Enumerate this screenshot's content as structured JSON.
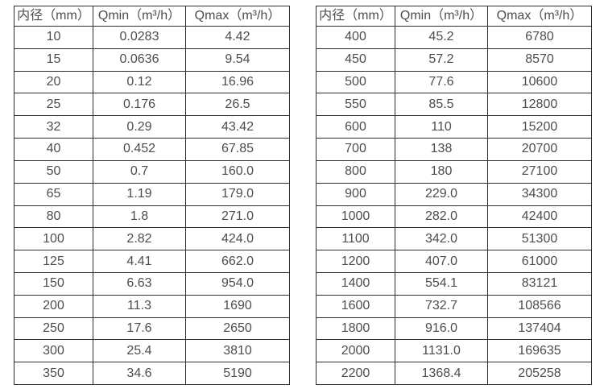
{
  "page": {
    "background": "#ffffff",
    "text_color": "#4d4d4d",
    "border_color": "#2e2e2e",
    "description": "Flow meter diameter and flow range specification tables"
  },
  "tables": [
    {
      "id": "small-diameter-table",
      "headers": [
        "内径（mm）",
        "Qmin（m³/h）",
        "Qmax（m³/h）"
      ],
      "rows": [
        [
          "10",
          "0.0283",
          "4.42"
        ],
        [
          "15",
          "0.0636",
          "9.54"
        ],
        [
          "20",
          "0.12",
          "16.96"
        ],
        [
          "25",
          "0.176",
          "26.5"
        ],
        [
          "32",
          "0.29",
          "43.42"
        ],
        [
          "40",
          "0.452",
          "67.85"
        ],
        [
          "50",
          "0.7",
          "160.0"
        ],
        [
          "65",
          "1.19",
          "179.0"
        ],
        [
          "80",
          "1.8",
          "271.0"
        ],
        [
          "100",
          "2.82",
          "424.0"
        ],
        [
          "125",
          "4.41",
          "662.0"
        ],
        [
          "150",
          "6.63",
          "954.0"
        ],
        [
          "200",
          "11.3",
          "1690"
        ],
        [
          "250",
          "17.6",
          "2650"
        ],
        [
          "300",
          "25.4",
          "3810"
        ],
        [
          "350",
          "34.6",
          "5190"
        ]
      ]
    },
    {
      "id": "large-diameter-table",
      "headers": [
        "内径（mm）",
        "Qmin（m³/h）",
        "Qmax（m³/h）"
      ],
      "rows": [
        [
          "400",
          "45.2",
          "6780"
        ],
        [
          "450",
          "57.2",
          "8570"
        ],
        [
          "500",
          "77.6",
          "10600"
        ],
        [
          "550",
          "85.5",
          "12800"
        ],
        [
          "600",
          "110",
          "15200"
        ],
        [
          "700",
          "138",
          "20700"
        ],
        [
          "800",
          "180",
          "27100"
        ],
        [
          "900",
          "229.0",
          "34300"
        ],
        [
          "1000",
          "282.0",
          "42400"
        ],
        [
          "1100",
          "342.0",
          "51300"
        ],
        [
          "1200",
          "407.0",
          "61000"
        ],
        [
          "1400",
          "554.1",
          "83121"
        ],
        [
          "1600",
          "732.7",
          "108566"
        ],
        [
          "1800",
          "916.0",
          "137404"
        ],
        [
          "2000",
          "1131.0",
          "169635"
        ],
        [
          "2200",
          "1368.4",
          "205258"
        ]
      ]
    }
  ]
}
